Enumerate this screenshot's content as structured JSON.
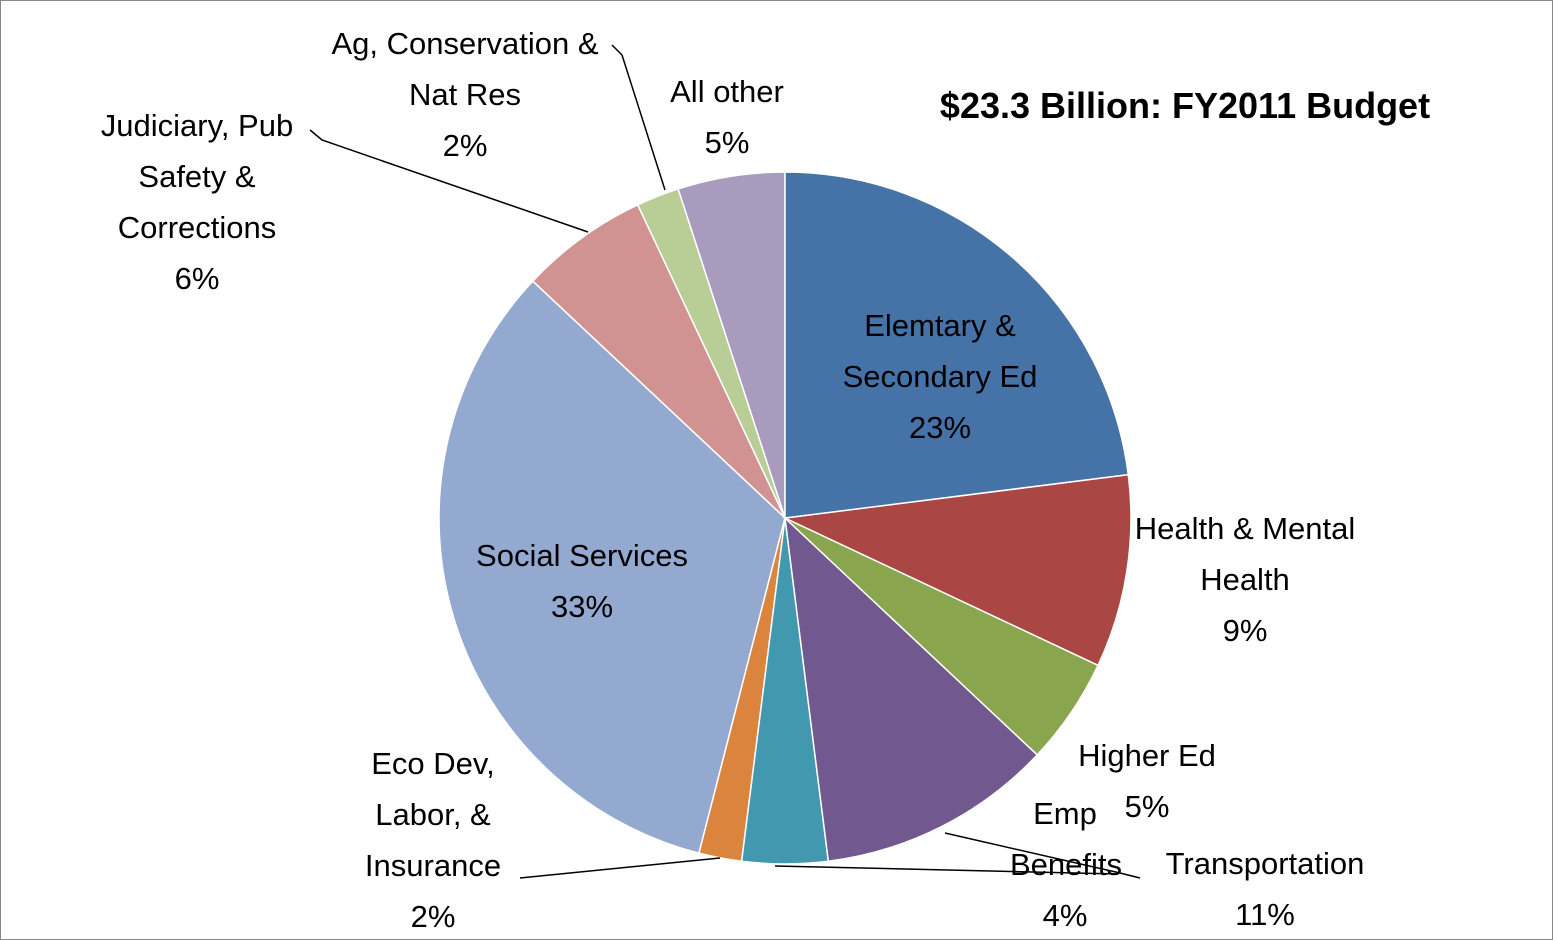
{
  "chart_data": {
    "type": "pie",
    "title": "$23.3 Billion: FY2011 Budget",
    "categories": [
      "Elemtary & Secondary Ed",
      "Health & Mental Health",
      "Higher Ed",
      "Transportation",
      "Emp Benefits",
      "Eco Dev, Labor, & Insurance",
      "Social Services",
      "Judiciary, Pub Safety & Corrections",
      "Ag, Conservation & Nat Res",
      "All other"
    ],
    "values": [
      23,
      9,
      5,
      11,
      4,
      2,
      33,
      6,
      2,
      5
    ],
    "value_labels": [
      "23%",
      "9%",
      "5%",
      "11%",
      "4%",
      "2%",
      "33%",
      "6%",
      "2%",
      "5%"
    ],
    "colors": [
      "#4572a7",
      "#aa4643",
      "#89a54e",
      "#71588f",
      "#4198af",
      "#db843d",
      "#93a9cf",
      "#d19392",
      "#b9cd96",
      "#a99bbd"
    ]
  }
}
